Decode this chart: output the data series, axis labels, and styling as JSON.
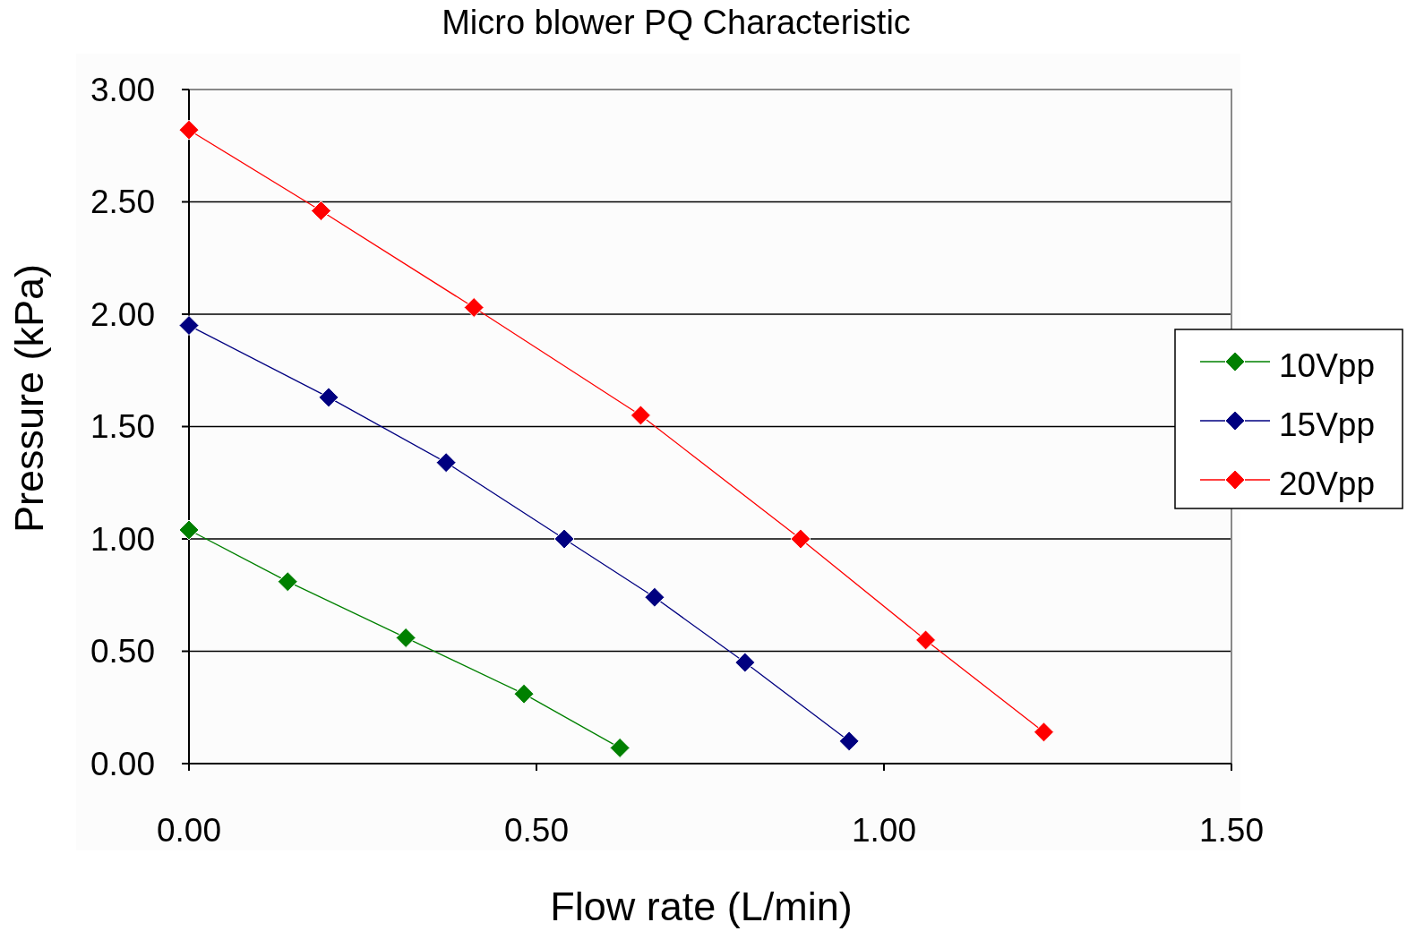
{
  "chart_data": {
    "type": "line",
    "title": "Micro blower PQ Characteristic",
    "xlabel": "Flow rate (L/min)",
    "ylabel": "Pressure (kPa)",
    "xlim": [
      0,
      1.5
    ],
    "ylim": [
      0,
      3
    ],
    "xticks": [
      {
        "value": 0,
        "label": "0.00"
      },
      {
        "value": 0.5,
        "label": "0.50"
      },
      {
        "value": 1,
        "label": "1.00"
      },
      {
        "value": 1.5,
        "label": "1.50"
      }
    ],
    "yticks": [
      {
        "value": 0,
        "label": "0.00"
      },
      {
        "value": 0.5,
        "label": "0.50"
      },
      {
        "value": 1,
        "label": "1.00"
      },
      {
        "value": 1.5,
        "label": "1.50"
      },
      {
        "value": 2,
        "label": "2.00"
      },
      {
        "value": 2.5,
        "label": "2.50"
      },
      {
        "value": 3,
        "label": "3.00"
      }
    ],
    "grid": "y",
    "legend": "right",
    "marker": "diamond",
    "line_style": "solid",
    "series": [
      {
        "name": "10Vpp",
        "color": "#008000",
        "x": [
          0,
          0.142,
          0.312,
          0.482,
          0.62
        ],
        "values": [
          1.04,
          0.81,
          0.56,
          0.31,
          0.07
        ]
      },
      {
        "name": "15Vpp",
        "color": "#000080",
        "x": [
          0,
          0.201,
          0.37,
          0.54,
          0.67,
          0.8,
          0.95
        ],
        "values": [
          1.95,
          1.63,
          1.34,
          1.0,
          0.74,
          0.45,
          0.1
        ]
      },
      {
        "name": "20Vpp",
        "color": "#ff0000",
        "x": [
          0,
          0.19,
          0.41,
          0.65,
          0.88,
          1.06,
          1.23
        ],
        "values": [
          2.82,
          2.46,
          2.03,
          1.55,
          1.0,
          0.55,
          0.14
        ]
      }
    ]
  }
}
